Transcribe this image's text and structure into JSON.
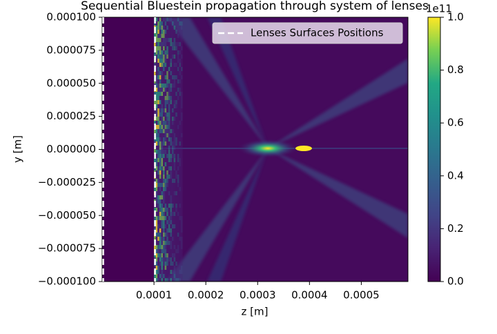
{
  "chart_data": {
    "type": "heatmap",
    "title": "Sequential Bluestein propagation through system of lenses",
    "x_label": "z [m]",
    "y_label": "y [m]",
    "xlim": [
      0,
      0.00059
    ],
    "xticks": [
      0.0001,
      0.0002,
      0.0003,
      0.0004,
      0.0005
    ],
    "ylim": [
      -0.0001,
      0.0001
    ],
    "yticks": [
      {
        "value": -0.0001,
        "label": "−0.000100"
      },
      {
        "value": -7.5e-05,
        "label": "−0.000075"
      },
      {
        "value": -5e-05,
        "label": "−0.000050"
      },
      {
        "value": -2.5e-05,
        "label": "−0.000025"
      },
      {
        "value": 0,
        "label": "0.000000"
      },
      {
        "value": 2.5e-05,
        "label": "0.000025"
      },
      {
        "value": 5e-05,
        "label": "0.000050"
      },
      {
        "value": 7.5e-05,
        "label": "0.000075"
      },
      {
        "value": 0.0001,
        "label": "0.000100"
      }
    ],
    "colorbar": {
      "lim": [
        0,
        1
      ],
      "offset_label": "1e11",
      "ticks": [
        {
          "value": 0,
          "label": "0.0"
        },
        0.2,
        0.4,
        0.6,
        0.8,
        {
          "value": 1,
          "label": "1.0"
        }
      ]
    },
    "series": [
      {
        "name": "Lenses Surfaces Positions",
        "color": "#ffffff",
        "x": [
          0,
          0.0001
        ]
      }
    ],
    "legend": "upper right"
  }
}
